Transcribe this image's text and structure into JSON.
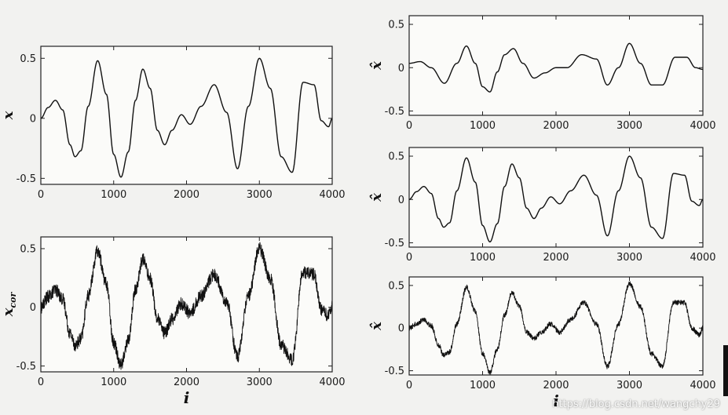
{
  "chart_data": [
    {
      "type": "line",
      "ylabel": "x",
      "xlabel": "",
      "xlim": [
        0,
        4000
      ],
      "ylim": [
        -0.55,
        0.6
      ],
      "xticks": [
        "0",
        "1000",
        "2000",
        "3000",
        "4000"
      ],
      "yticks": [
        "0.5",
        "0",
        "-0.5"
      ],
      "series": [
        {
          "x": [
            0,
            100,
            200,
            300,
            400,
            470,
            550,
            650,
            780,
            900,
            1000,
            1100,
            1200,
            1300,
            1400,
            1500,
            1600,
            1700,
            1800,
            1930,
            2050,
            2200,
            2380,
            2550,
            2700,
            2850,
            3000,
            3150,
            3300,
            3450,
            3600,
            3750,
            3850,
            3950,
            4000
          ],
          "y": [
            0.0,
            0.09,
            0.15,
            0.07,
            -0.22,
            -0.32,
            -0.27,
            0.1,
            0.48,
            0.2,
            -0.3,
            -0.49,
            -0.28,
            0.15,
            0.41,
            0.25,
            -0.1,
            -0.22,
            -0.1,
            0.03,
            -0.05,
            0.1,
            0.28,
            0.05,
            -0.42,
            0.1,
            0.5,
            0.25,
            -0.32,
            -0.45,
            0.3,
            0.28,
            -0.02,
            -0.07,
            0.0
          ]
        }
      ]
    },
    {
      "type": "line",
      "ylabel": "x",
      "ylabel_sub": "cor",
      "xlabel": "i",
      "xlim": [
        0,
        4000
      ],
      "ylim": [
        -0.55,
        0.6
      ],
      "xticks": [
        "0",
        "1000",
        "2000",
        "3000",
        "4000"
      ],
      "yticks": [
        "0.5",
        "0",
        "-0.5"
      ],
      "noise": 0.055,
      "series": [
        {
          "x": [
            0,
            100,
            200,
            300,
            400,
            470,
            550,
            650,
            780,
            900,
            1000,
            1100,
            1200,
            1300,
            1400,
            1500,
            1600,
            1700,
            1800,
            1930,
            2050,
            2200,
            2380,
            2550,
            2700,
            2850,
            3000,
            3150,
            3300,
            3450,
            3600,
            3750,
            3850,
            3950,
            4000
          ],
          "y": [
            0.0,
            0.09,
            0.15,
            0.07,
            -0.22,
            -0.32,
            -0.27,
            0.1,
            0.48,
            0.2,
            -0.3,
            -0.49,
            -0.28,
            0.15,
            0.41,
            0.25,
            -0.1,
            -0.22,
            -0.1,
            0.03,
            -0.05,
            0.1,
            0.28,
            0.05,
            -0.42,
            0.1,
            0.5,
            0.25,
            -0.32,
            -0.45,
            0.3,
            0.28,
            -0.02,
            -0.07,
            0.0
          ]
        }
      ]
    },
    {
      "type": "line",
      "ylabel": "x̂",
      "xlabel": "",
      "xlim": [
        0,
        4000
      ],
      "ylim": [
        -0.55,
        0.6
      ],
      "xticks": [
        "0",
        "1000",
        "2000",
        "3000",
        "4000"
      ],
      "yticks": [
        "0.5",
        "0",
        "-0.5"
      ],
      "series": [
        {
          "x": [
            0,
            150,
            300,
            480,
            650,
            780,
            900,
            1000,
            1100,
            1200,
            1300,
            1420,
            1550,
            1700,
            1850,
            2000,
            2150,
            2350,
            2550,
            2700,
            2850,
            3000,
            3150,
            3300,
            3450,
            3620,
            3780,
            3900,
            4000
          ],
          "y": [
            0.05,
            0.07,
            0.0,
            -0.18,
            0.05,
            0.25,
            0.05,
            -0.22,
            -0.28,
            -0.05,
            0.15,
            0.22,
            0.05,
            -0.12,
            -0.06,
            0.0,
            0.0,
            0.15,
            0.1,
            -0.2,
            0.0,
            0.28,
            0.05,
            -0.2,
            -0.2,
            0.12,
            0.12,
            0.0,
            -0.02
          ]
        }
      ]
    },
    {
      "type": "line",
      "ylabel": "x̂",
      "xlabel": "",
      "xlim": [
        0,
        4000
      ],
      "ylim": [
        -0.55,
        0.6
      ],
      "xticks": [
        "0",
        "1000",
        "2000",
        "3000",
        "4000"
      ],
      "yticks": [
        "0.5",
        "0",
        "-0.5"
      ],
      "series": [
        {
          "x": [
            0,
            100,
            200,
            300,
            400,
            470,
            550,
            650,
            780,
            900,
            1000,
            1100,
            1200,
            1300,
            1400,
            1500,
            1600,
            1700,
            1800,
            1930,
            2050,
            2200,
            2380,
            2550,
            2700,
            2850,
            3000,
            3150,
            3300,
            3450,
            3600,
            3750,
            3850,
            3950,
            4000
          ],
          "y": [
            0.0,
            0.09,
            0.15,
            0.07,
            -0.22,
            -0.32,
            -0.27,
            0.1,
            0.48,
            0.2,
            -0.3,
            -0.49,
            -0.28,
            0.15,
            0.41,
            0.25,
            -0.1,
            -0.22,
            -0.1,
            0.03,
            -0.05,
            0.1,
            0.28,
            0.05,
            -0.42,
            0.1,
            0.5,
            0.25,
            -0.32,
            -0.45,
            0.3,
            0.28,
            -0.02,
            -0.07,
            0.0
          ]
        }
      ]
    },
    {
      "type": "line",
      "ylabel": "x̂",
      "xlabel": "i",
      "xlim": [
        0,
        4000
      ],
      "ylim": [
        -0.55,
        0.6
      ],
      "xticks": [
        "0",
        "1000",
        "2000",
        "3000",
        "4000"
      ],
      "yticks": [
        "0.5",
        "0",
        "-0.5"
      ],
      "noise": 0.03,
      "series": [
        {
          "x": [
            0,
            100,
            200,
            300,
            400,
            470,
            550,
            650,
            780,
            900,
            1000,
            1100,
            1200,
            1300,
            1400,
            1500,
            1600,
            1700,
            1800,
            1930,
            2050,
            2200,
            2380,
            2550,
            2700,
            2850,
            3000,
            3150,
            3300,
            3450,
            3600,
            3750,
            3850,
            3950,
            4000
          ],
          "y": [
            0.0,
            0.05,
            0.1,
            0.03,
            -0.2,
            -0.32,
            -0.28,
            0.05,
            0.48,
            0.2,
            -0.3,
            -0.52,
            -0.25,
            0.15,
            0.42,
            0.25,
            -0.05,
            -0.12,
            -0.05,
            0.05,
            -0.05,
            0.1,
            0.3,
            0.05,
            -0.45,
            0.05,
            0.52,
            0.25,
            -0.3,
            -0.45,
            0.3,
            0.3,
            0.0,
            -0.08,
            0.0
          ]
        }
      ]
    }
  ],
  "watermark": "https://blog.csdn.net/wangchy29"
}
